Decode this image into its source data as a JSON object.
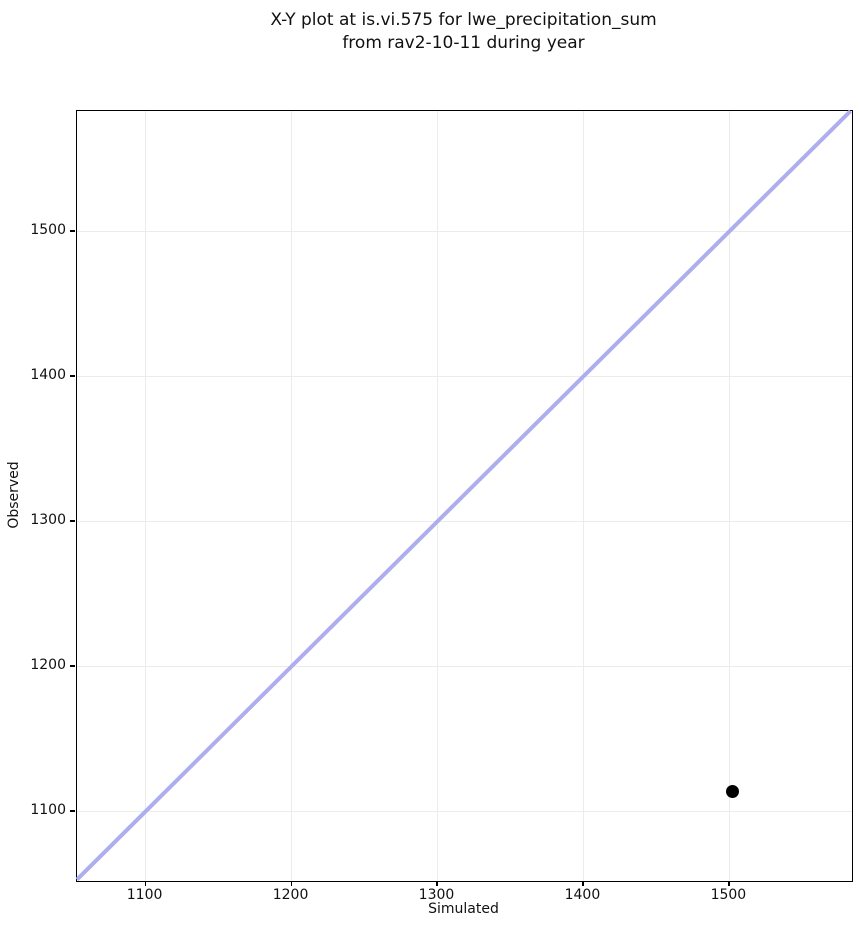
{
  "figure": {
    "title_line1": "X-Y plot at is.vi.575 for lwe_precipitation_sum",
    "title_line2": "from rav2-10-11 during year"
  },
  "chart_data": {
    "type": "scatter",
    "title": "X-Y plot at is.vi.575 for lwe_precipitation_sum\nfrom rav2-10-11 during year",
    "xlabel": "Simulated",
    "ylabel": "Observed",
    "xlim": [
      1053,
      1584
    ],
    "ylim": [
      1052,
      1583
    ],
    "xticks": [
      1100,
      1200,
      1300,
      1400,
      1500
    ],
    "yticks": [
      1100,
      1200,
      1300,
      1400,
      1500
    ],
    "grid": true,
    "legend": false,
    "series": [
      {
        "name": "identity-line",
        "type": "line",
        "points": [
          [
            1053,
            1053
          ],
          [
            1583,
            1583
          ]
        ],
        "color": "#aeaeef",
        "stroke_width": 4
      },
      {
        "name": "observed-vs-simulated",
        "type": "scatter",
        "points": [
          [
            1502,
            1114
          ]
        ],
        "color": "#000000",
        "marker_size": 13
      }
    ],
    "colors": {
      "grid": "#ececec",
      "spine": "#000000",
      "background": "#ffffff"
    }
  }
}
